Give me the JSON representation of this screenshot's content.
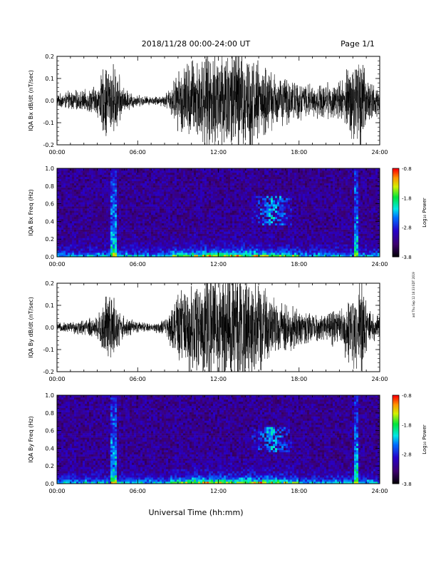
{
  "header": {
    "date_range": "2018/11/28  00:00-24:00 UT",
    "page": "Page 1/1"
  },
  "side_note": "ast Thu Sep 12 16:33 EDT 2019",
  "chart_data": [
    {
      "type": "line",
      "ylabel": "IQA Bx dB/dt (nT/sec)",
      "xlim": [
        0,
        24
      ],
      "ylim": [
        -0.2,
        0.2
      ],
      "xticks": [
        "00:00",
        "06:00",
        "12:00",
        "18:00",
        "24:00"
      ],
      "yticks": [
        "-0.2",
        "-0.1",
        "0.0",
        "0.1",
        "0.2"
      ],
      "envelope": {
        "hours": [
          0,
          1,
          2,
          3,
          3.5,
          4,
          4.5,
          5,
          6,
          7,
          8,
          8.5,
          9,
          9.5,
          10,
          11,
          12,
          13,
          14,
          15,
          16,
          17,
          18,
          19,
          20,
          21,
          22,
          22.5,
          23,
          24
        ],
        "amplitude": [
          0.03,
          0.05,
          0.05,
          0.08,
          0.18,
          0.2,
          0.15,
          0.06,
          0.03,
          0.02,
          0.03,
          0.08,
          0.15,
          0.2,
          0.22,
          0.25,
          0.28,
          0.3,
          0.3,
          0.2,
          0.15,
          0.12,
          0.1,
          0.08,
          0.09,
          0.1,
          0.2,
          0.3,
          0.12,
          0.07
        ]
      }
    },
    {
      "type": "heatmap",
      "ylabel": "IQA Bx Freq (Hz)",
      "xlim": [
        0,
        24
      ],
      "ylim": [
        0,
        1.0
      ],
      "xticks": [
        "00:00",
        "06:00",
        "12:00",
        "18:00",
        "24:00"
      ],
      "yticks": [
        "0.0",
        "0.2",
        "0.4",
        "0.6",
        "0.8",
        "1.0"
      ],
      "colorbar": {
        "label": "Log₁₀ Power",
        "range": [
          -3.8,
          -0.8
        ],
        "ticks": [
          "-0.8",
          "-1.8",
          "-2.8",
          "-3.8"
        ]
      },
      "features": {
        "band_hours": [
          14.5,
          17.5
        ],
        "band_freq": [
          0.35,
          0.7
        ],
        "spike_hours": [
          4.2,
          22.3
        ]
      }
    },
    {
      "type": "line",
      "ylabel": "IQA By dB/dt (nT/sec)",
      "xlim": [
        0,
        24
      ],
      "ylim": [
        -0.2,
        0.2
      ],
      "xticks": [
        "00:00",
        "06:00",
        "12:00",
        "18:00",
        "24:00"
      ],
      "yticks": [
        "-0.2",
        "-0.1",
        "0.0",
        "0.1",
        "0.2"
      ],
      "envelope": {
        "hours": [
          0,
          1,
          2,
          3,
          3.5,
          4,
          4.5,
          5,
          6,
          7,
          8,
          8.5,
          9,
          9.5,
          10,
          11,
          12,
          13,
          14,
          15,
          16,
          17,
          18,
          19,
          20,
          21,
          22,
          22.5,
          23,
          24
        ],
        "amplitude": [
          0.02,
          0.03,
          0.04,
          0.06,
          0.16,
          0.2,
          0.12,
          0.05,
          0.03,
          0.02,
          0.04,
          0.1,
          0.18,
          0.22,
          0.25,
          0.28,
          0.3,
          0.32,
          0.3,
          0.22,
          0.15,
          0.12,
          0.1,
          0.07,
          0.08,
          0.1,
          0.22,
          0.32,
          0.12,
          0.06
        ]
      }
    },
    {
      "type": "heatmap",
      "ylabel": "IQA By Freq (Hz)",
      "xlim": [
        0,
        24
      ],
      "ylim": [
        0,
        1.0
      ],
      "xticks": [
        "00:00",
        "06:00",
        "12:00",
        "18:00",
        "24:00"
      ],
      "yticks": [
        "0.0",
        "0.2",
        "0.4",
        "0.6",
        "0.8",
        "1.0"
      ],
      "colorbar": {
        "label": "Log₁₀ Power",
        "range": [
          -3.8,
          -0.8
        ],
        "ticks": [
          "-0.8",
          "-1.8",
          "-2.8",
          "-3.8"
        ]
      },
      "features": {
        "band_hours": [
          14.5,
          17.5
        ],
        "band_freq": [
          0.35,
          0.65
        ],
        "spike_hours": [
          4.2,
          22.3
        ]
      }
    }
  ],
  "xlabel": "Universal Time (hh:mm)"
}
